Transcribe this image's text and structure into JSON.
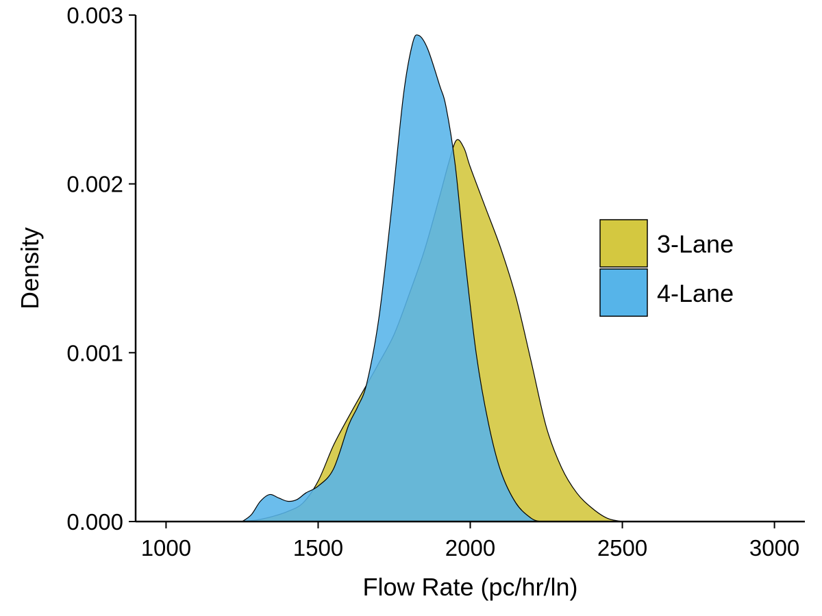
{
  "chart_data": {
    "type": "area",
    "title": "",
    "xlabel": "Flow Rate (pc/hr/ln)",
    "ylabel": "Density",
    "xlim": [
      900,
      3100
    ],
    "ylim": [
      0,
      0.003
    ],
    "xticks": [
      1000,
      1500,
      2000,
      2500,
      3000
    ],
    "xtick_labels": [
      "1000",
      "1500",
      "2000",
      "2500",
      "3000"
    ],
    "yticks": [
      0,
      0.001,
      0.002,
      0.003
    ],
    "ytick_labels": [
      "0.000",
      "0.001",
      "0.002",
      "0.003"
    ],
    "grid": false,
    "legend_position": "right",
    "series": [
      {
        "name": "3-Lane",
        "color": "#d4c840",
        "points": [
          [
            1240,
            0.0
          ],
          [
            1300,
            1e-05
          ],
          [
            1350,
            3e-05
          ],
          [
            1400,
            6e-05
          ],
          [
            1450,
            0.00011
          ],
          [
            1500,
            0.00024
          ],
          [
            1550,
            0.00045
          ],
          [
            1600,
            0.00062
          ],
          [
            1650,
            0.00078
          ],
          [
            1700,
            0.00094
          ],
          [
            1750,
            0.00111
          ],
          [
            1800,
            0.00135
          ],
          [
            1850,
            0.00161
          ],
          [
            1900,
            0.00193
          ],
          [
            1930,
            0.00213
          ],
          [
            1955,
            0.00226
          ],
          [
            1980,
            0.00221
          ],
          [
            2000,
            0.0021
          ],
          [
            2050,
            0.00186
          ],
          [
            2100,
            0.00162
          ],
          [
            2150,
            0.00133
          ],
          [
            2200,
            0.00095
          ],
          [
            2250,
            0.00056
          ],
          [
            2300,
            0.00032
          ],
          [
            2350,
            0.00017
          ],
          [
            2400,
            8e-05
          ],
          [
            2450,
            2e-05
          ],
          [
            2500,
            0.0
          ]
        ]
      },
      {
        "name": "4-Lane",
        "color": "#56b4e9",
        "points": [
          [
            1250,
            0.0
          ],
          [
            1280,
            4e-05
          ],
          [
            1310,
            0.00012
          ],
          [
            1340,
            0.00016
          ],
          [
            1370,
            0.00014
          ],
          [
            1400,
            0.00012
          ],
          [
            1430,
            0.00013
          ],
          [
            1460,
            0.00017
          ],
          [
            1500,
            0.00021
          ],
          [
            1550,
            0.00031
          ],
          [
            1600,
            0.00057
          ],
          [
            1630,
            0.00068
          ],
          [
            1660,
            0.00082
          ],
          [
            1700,
            0.00121
          ],
          [
            1740,
            0.00183
          ],
          [
            1780,
            0.00252
          ],
          [
            1810,
            0.00283
          ],
          [
            1830,
            0.00288
          ],
          [
            1860,
            0.0028
          ],
          [
            1900,
            0.00258
          ],
          [
            1920,
            0.00246
          ],
          [
            1950,
            0.00212
          ],
          [
            1980,
            0.0016
          ],
          [
            2020,
            0.00099
          ],
          [
            2060,
            0.00058
          ],
          [
            2100,
            0.0003
          ],
          [
            2150,
            0.00011
          ],
          [
            2200,
            2e-05
          ],
          [
            2230,
            0.0
          ]
        ]
      }
    ]
  }
}
